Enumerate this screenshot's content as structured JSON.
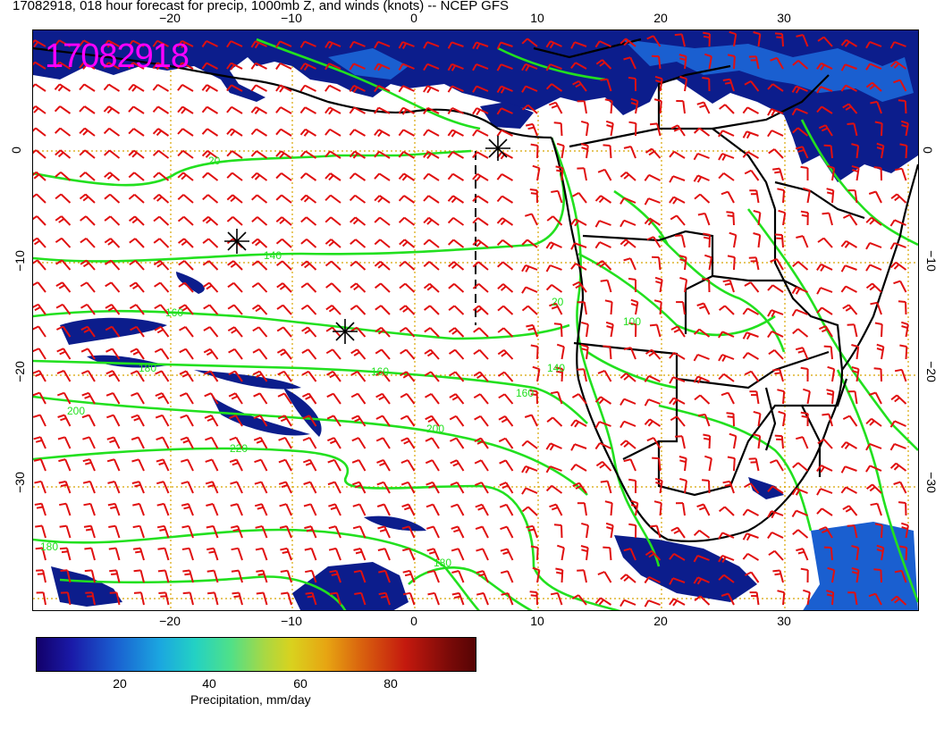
{
  "title": "17082918, 018 hour forecast for precip, 1000mb Z, and winds (knots) -- NCEP GFS",
  "date_stamp": "17082918",
  "axes": {
    "lon_ticks": [
      "−20",
      "−10",
      "0",
      "10",
      "20",
      "30"
    ],
    "lat_ticks": [
      "0",
      "−10",
      "−20",
      "−30"
    ],
    "lon_range": [
      -30,
      41
    ],
    "lat_range": [
      -41,
      10
    ]
  },
  "contour_labels": [
    "20",
    "140",
    "160",
    "180",
    "200",
    "220",
    "160",
    "180",
    "200",
    "140",
    "160",
    "180",
    "100",
    "20"
  ],
  "colorbar": {
    "ticks": [
      "20",
      "40",
      "60",
      "80"
    ],
    "label": "Precipitation, mm/day",
    "range": [
      0,
      100
    ]
  },
  "colors": {
    "contour": "#22e01f",
    "wind_barb": "#e01010",
    "graticule": "#d8a500",
    "date_stamp": "#ff00ff",
    "precip_dark": "#0c1d8c",
    "precip_mid": "#1a5fd0"
  },
  "markers": {
    "icon": "asterisk-marker-icon",
    "count": 3
  }
}
